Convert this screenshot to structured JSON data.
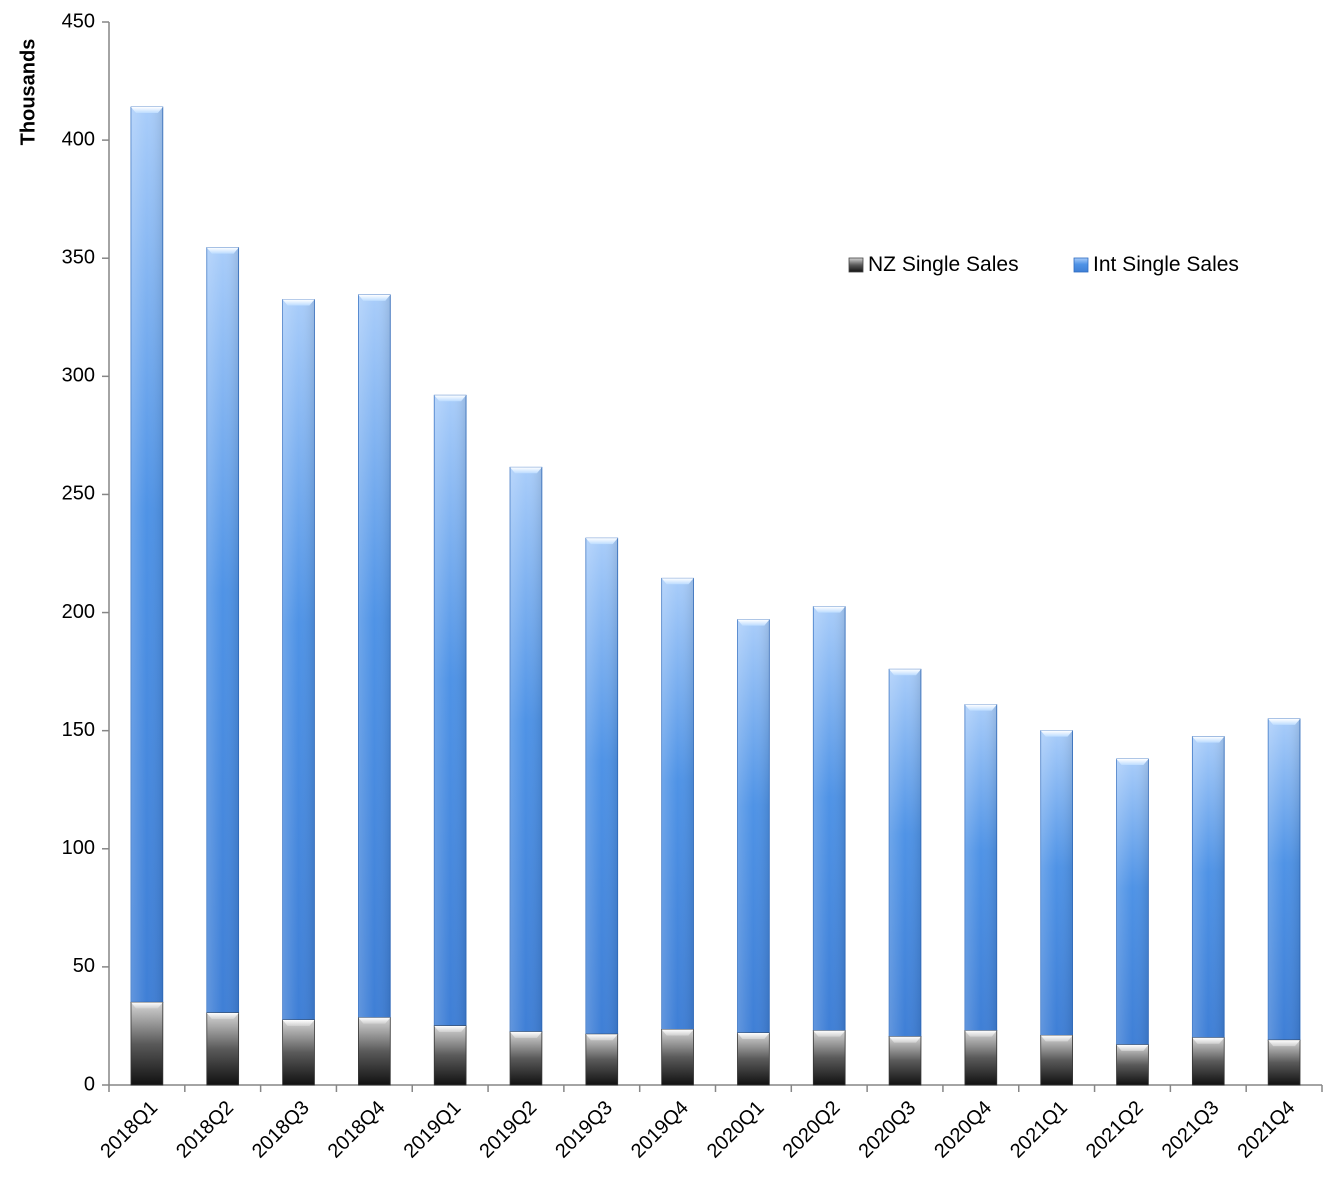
{
  "chart_data": {
    "type": "bar",
    "stacked": true,
    "title": "",
    "xlabel": "",
    "ylabel": "Thousands",
    "ylim": [
      0,
      450
    ],
    "yticks": [
      0,
      50,
      100,
      150,
      200,
      250,
      300,
      350,
      400,
      450
    ],
    "categories": [
      "2018Q1",
      "2018Q2",
      "2018Q3",
      "2018Q4",
      "2019Q1",
      "2019Q2",
      "2019Q3",
      "2019Q4",
      "2020Q1",
      "2020Q2",
      "2020Q3",
      "2020Q4",
      "2021Q1",
      "2021Q2",
      "2021Q3",
      "2021Q4"
    ],
    "series": [
      {
        "name": "NZ Single Sales",
        "color": "#3a3a3a",
        "values": [
          35,
          30.5,
          27.5,
          28.5,
          25,
          22.5,
          21.5,
          23.5,
          22,
          23,
          20.5,
          23,
          21,
          17,
          20,
          19
        ]
      },
      {
        "name": "Int Single Sales",
        "color": "#4a8ee0",
        "values": [
          379,
          324,
          305,
          306,
          267,
          239,
          210,
          191,
          175,
          179.5,
          155.5,
          138,
          129,
          121,
          127.5,
          136
        ]
      }
    ],
    "legend_position": "top-right",
    "grid": false
  }
}
